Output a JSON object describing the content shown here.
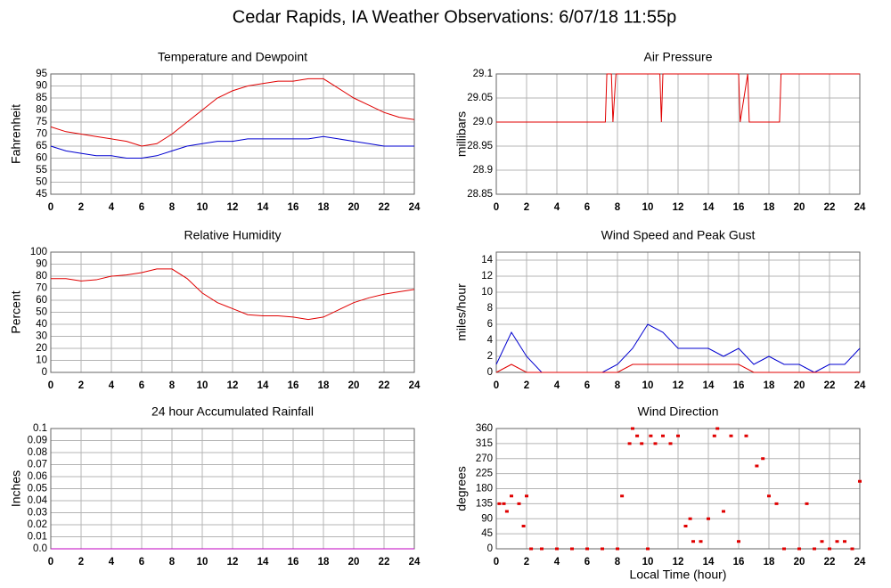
{
  "title": "Cedar Rapids, IA Weather Observations: 6/07/18 11:55p",
  "chart_data": [
    {
      "type": "line",
      "title": "Temperature and Dewpoint",
      "ylabel": "Fahrenheit",
      "x": [
        0,
        1,
        2,
        3,
        4,
        5,
        6,
        7,
        8,
        9,
        10,
        11,
        12,
        13,
        14,
        15,
        16,
        17,
        18,
        19,
        20,
        21,
        22,
        23,
        24
      ],
      "series": [
        {
          "name": "Temperature",
          "color": "#e00000",
          "values": [
            73,
            71,
            70,
            69,
            68,
            67,
            65,
            66,
            70,
            75,
            80,
            85,
            88,
            90,
            91,
            92,
            92,
            93,
            93,
            89,
            85,
            82,
            79,
            77,
            76
          ]
        },
        {
          "name": "Dewpoint",
          "color": "#0000d0",
          "values": [
            65,
            63,
            62,
            61,
            61,
            60,
            60,
            61,
            63,
            65,
            66,
            67,
            67,
            68,
            68,
            68,
            68,
            68,
            69,
            68,
            67,
            66,
            65,
            65,
            65
          ]
        }
      ],
      "xlim": [
        0,
        24
      ],
      "xticks": [
        0,
        2,
        4,
        6,
        8,
        10,
        12,
        14,
        16,
        18,
        20,
        22,
        24
      ],
      "ylim": [
        45,
        95
      ],
      "yticks": [
        45,
        50,
        55,
        60,
        65,
        70,
        75,
        80,
        85,
        90,
        95
      ],
      "grid": true
    },
    {
      "type": "line",
      "title": "Air Pressure",
      "ylabel": "millibars",
      "x": [
        0,
        7.2,
        7.3,
        7.6,
        7.7,
        7.9,
        10.8,
        10.9,
        11.0,
        16.0,
        16.1,
        16.6,
        16.7,
        18.7,
        18.8,
        18.9,
        24
      ],
      "series": [
        {
          "name": "Pressure",
          "color": "#e00000",
          "values": [
            29.0,
            29.0,
            29.1,
            29.1,
            29.0,
            29.1,
            29.1,
            29.0,
            29.1,
            29.1,
            29.0,
            29.1,
            29.0,
            29.0,
            29.1,
            29.1,
            29.1
          ]
        }
      ],
      "xlim": [
        0,
        24
      ],
      "xticks": [
        0,
        2,
        4,
        6,
        8,
        10,
        12,
        14,
        16,
        18,
        20,
        22,
        24
      ],
      "ylim": [
        28.85,
        29.1
      ],
      "yticks": [
        28.85,
        28.9,
        28.95,
        {
          "value": 29,
          "label": "29.0"
        },
        29.05,
        29.1
      ],
      "grid": true
    },
    {
      "type": "line",
      "title": "Relative Humidity",
      "ylabel": "Percent",
      "x": [
        0,
        1,
        2,
        3,
        4,
        5,
        6,
        7,
        8,
        9,
        10,
        11,
        12,
        13,
        14,
        15,
        16,
        17,
        18,
        19,
        20,
        21,
        22,
        23,
        24
      ],
      "series": [
        {
          "name": "Humidity",
          "color": "#e00000",
          "values": [
            78,
            78,
            76,
            77,
            80,
            81,
            83,
            86,
            86,
            78,
            66,
            58,
            53,
            48,
            47,
            47,
            46,
            44,
            46,
            52,
            58,
            62,
            65,
            67,
            69
          ]
        }
      ],
      "xlim": [
        0,
        24
      ],
      "xticks": [
        0,
        2,
        4,
        6,
        8,
        10,
        12,
        14,
        16,
        18,
        20,
        22,
        24
      ],
      "ylim": [
        0,
        100
      ],
      "yticks": [
        0,
        10,
        20,
        30,
        40,
        50,
        60,
        70,
        80,
        90,
        100
      ],
      "grid": true
    },
    {
      "type": "line",
      "title": "Wind Speed and Peak Gust",
      "ylabel": "miles/hour",
      "x": [
        0,
        1,
        2,
        3,
        4,
        5,
        6,
        7,
        8,
        9,
        10,
        11,
        12,
        13,
        14,
        15,
        16,
        17,
        18,
        19,
        20,
        21,
        22,
        23,
        24
      ],
      "series": [
        {
          "name": "Wind Speed",
          "color": "#0000d0",
          "values": [
            1,
            5,
            2,
            0,
            0,
            0,
            0,
            0,
            1,
            3,
            6,
            5,
            3,
            3,
            3,
            2,
            3,
            1,
            2,
            1,
            1,
            0,
            1,
            1,
            3
          ]
        },
        {
          "name": "Peak Gust",
          "color": "#e00000",
          "values": [
            0,
            1,
            0,
            0,
            0,
            0,
            0,
            0,
            0,
            1,
            1,
            1,
            1,
            1,
            1,
            1,
            1,
            0,
            0,
            0,
            0,
            0,
            0,
            0,
            0
          ]
        }
      ],
      "xlim": [
        0,
        24
      ],
      "xticks": [
        0,
        2,
        4,
        6,
        8,
        10,
        12,
        14,
        16,
        18,
        20,
        22,
        24
      ],
      "ylim": [
        0,
        15
      ],
      "yticks": [
        0,
        2,
        4,
        6,
        8,
        10,
        12,
        14
      ],
      "grid": true
    },
    {
      "type": "line",
      "title": "24 hour Accumulated Rainfall",
      "ylabel": "Inches",
      "x": [
        0,
        24
      ],
      "series": [
        {
          "name": "Rainfall",
          "color": "#c000c0",
          "values": [
            0,
            0
          ]
        }
      ],
      "xlim": [
        0,
        24
      ],
      "xticks": [
        0,
        2,
        4,
        6,
        8,
        10,
        12,
        14,
        16,
        18,
        20,
        22,
        24
      ],
      "ylim": [
        0,
        0.1
      ],
      "yticks": [
        {
          "value": 0,
          "label": "0.0"
        },
        0.01,
        0.02,
        0.03,
        0.04,
        0.05,
        0.06,
        0.07,
        0.08,
        0.09,
        0.1
      ],
      "grid": true
    },
    {
      "type": "scatter",
      "title": "Wind Direction",
      "ylabel": "degrees",
      "xlabel": "Local Time (hour)",
      "x": [
        0.2,
        0.5,
        0.7,
        1,
        1.5,
        1.8,
        2,
        2.3,
        3,
        4,
        5,
        6,
        7,
        8,
        8.3,
        8.8,
        9,
        9.3,
        9.6,
        10,
        10.2,
        10.5,
        11,
        11.5,
        12,
        12.5,
        12.8,
        13,
        13.5,
        14,
        14.4,
        14.6,
        15,
        15.5,
        16,
        16.5,
        17.2,
        17.6,
        18,
        18.5,
        19,
        20,
        20.5,
        21,
        21.5,
        22,
        22.5,
        23,
        23.5,
        24
      ],
      "series": [
        {
          "name": "Direction",
          "color": "#e00000",
          "values": [
            135,
            135,
            112,
            158,
            135,
            68,
            158,
            0,
            0,
            0,
            0,
            0,
            0,
            0,
            158,
            315,
            360,
            338,
            315,
            0,
            338,
            315,
            338,
            315,
            338,
            68,
            90,
            22,
            22,
            90,
            338,
            360,
            112,
            338,
            22,
            338,
            248,
            270,
            158,
            135,
            0,
            0,
            135,
            0,
            22,
            0,
            22,
            22,
            0,
            202
          ]
        }
      ],
      "xlim": [
        0,
        24
      ],
      "xticks": [
        0,
        2,
        4,
        6,
        8,
        10,
        12,
        14,
        16,
        18,
        20,
        22,
        24
      ],
      "ylim": [
        0,
        360
      ],
      "yticks": [
        0,
        45,
        90,
        135,
        180,
        225,
        270,
        315,
        360
      ],
      "grid": true
    }
  ]
}
